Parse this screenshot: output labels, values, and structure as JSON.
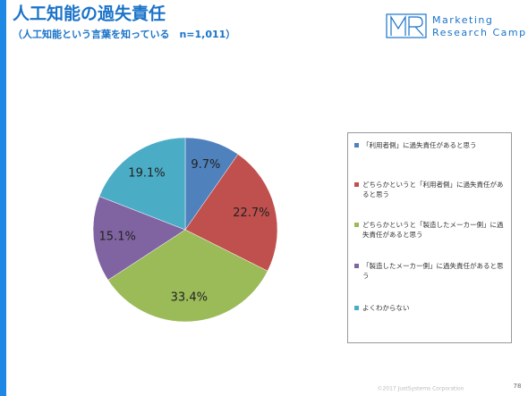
{
  "chart_data": {
    "type": "pie",
    "title": "人工知能の過失責任",
    "subtitle": "（人工知能という言葉を知っている　n=1,011）",
    "categories": [
      "「利用者側」に過失責任があると思う",
      "どちらかというと「利用者側」に過失責任があると思う",
      "どちらかというと「製造したメーカー側」に過失責任があると思う",
      "「製造したメーカー側」に過失責任があると思う",
      "よくわからない"
    ],
    "values": [
      9.7,
      22.7,
      33.4,
      15.1,
      19.1
    ],
    "value_labels": [
      "9.7%",
      "22.7%",
      "33.4%",
      "15.1%",
      "19.1%"
    ],
    "colors": [
      "#4f81bd",
      "#c0504d",
      "#9bbb59",
      "#8064a2",
      "#4bacc6"
    ],
    "legend": "right"
  },
  "logo": {
    "line1": "Marketing",
    "line2": "Research Camp"
  },
  "footer": {
    "copyright": "©2017 JustSystems Corporation",
    "page_number": "78"
  }
}
